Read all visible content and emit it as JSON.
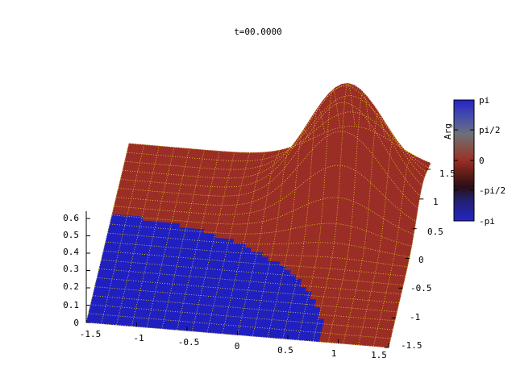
{
  "chart_data": {
    "type": "surface",
    "title": "t=00.0000",
    "x_ticks": [
      "-1.5",
      "-1",
      "-0.5",
      "0",
      "0.5",
      "1",
      "1.5"
    ],
    "y_ticks": [
      "-1.5",
      "-1",
      "-0.5",
      "0",
      "0.5",
      "1",
      "1.5"
    ],
    "z_ticks": [
      "0",
      "0.1",
      "0.2",
      "0.3",
      "0.4",
      "0.5",
      "0.6"
    ],
    "xlim": [
      -1.5,
      1.5
    ],
    "ylim": [
      -1.5,
      1.5
    ],
    "zlim": [
      0,
      0.65
    ],
    "surface": {
      "function": "gaussian",
      "peak_height": 0.65,
      "peak_x": 0.75,
      "peak_y": 0.9,
      "sigma": 0.4
    },
    "phase_regions": [
      {
        "phase": "-pi",
        "color": "#2020c0",
        "region": "lower-left, x < 0.85"
      },
      {
        "phase": "0",
        "color": "#9a2e26",
        "region": "rest of surface"
      }
    ],
    "colorbar": {
      "label": "Arg",
      "ticks": [
        "pi",
        "pi/2",
        "0",
        "-pi/2",
        "-pi"
      ]
    },
    "colors": {
      "mesh": "#e8d020",
      "red_phase": "#9a2e26",
      "blue_phase": "#2020c0"
    }
  }
}
